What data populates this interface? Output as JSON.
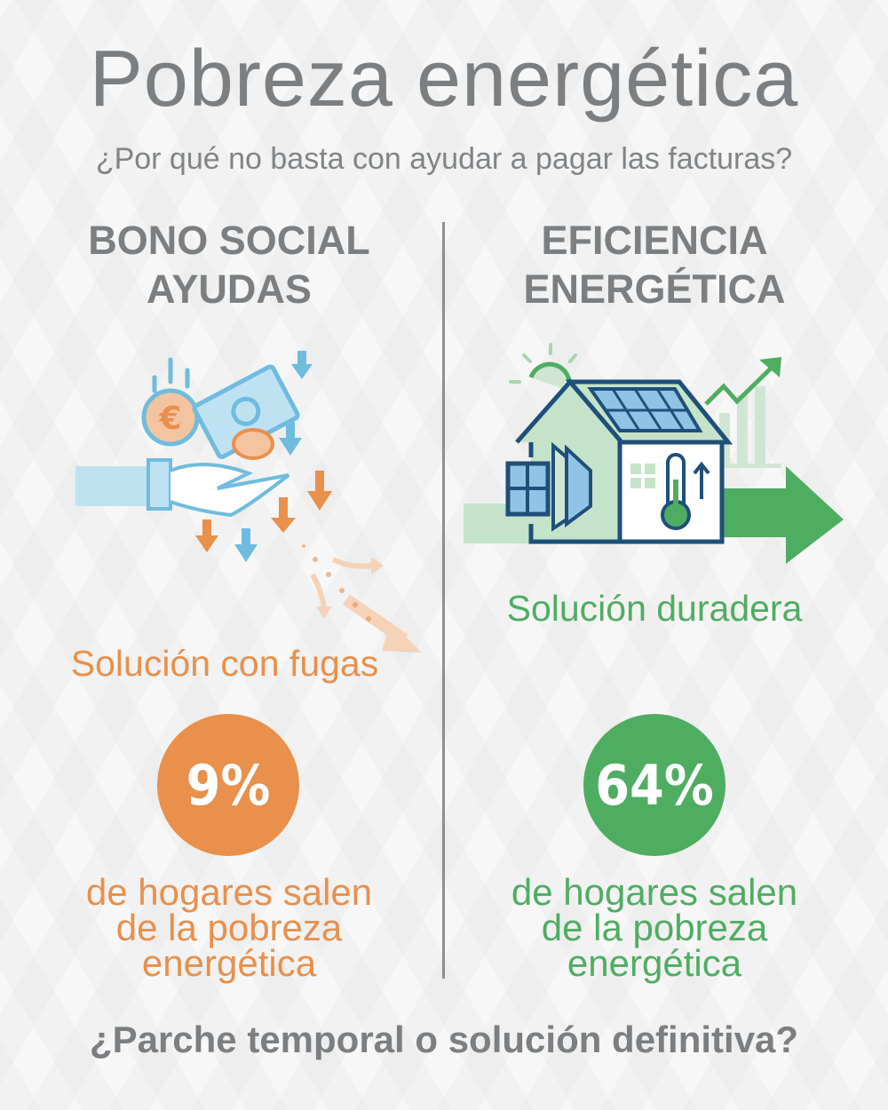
{
  "header": {
    "title": "Pobreza energética",
    "subtitle": "¿Por qué no basta con ayudar a pagar las facturas?"
  },
  "left": {
    "heading_line1": "BONO SOCIAL",
    "heading_line2": "AYUDAS",
    "tagline": "Solución con fugas",
    "percent": "9%",
    "desc_line1": "de hogares salen",
    "desc_line2": "de la pobreza",
    "desc_line3": "energética",
    "color": "#e8904c",
    "icon": "hand-money-leaking-icon"
  },
  "right": {
    "heading_line1": "EFICIENCIA",
    "heading_line2": "ENERGÉTICA",
    "tagline": "Solución duradera",
    "percent": "64%",
    "desc_line1": "de hogares salen",
    "desc_line2": "de la pobreza",
    "desc_line3": "energética",
    "color": "#4fad62",
    "icon": "efficient-house-icon"
  },
  "footer": {
    "question": "¿Parche temporal o solución definitiva?"
  }
}
